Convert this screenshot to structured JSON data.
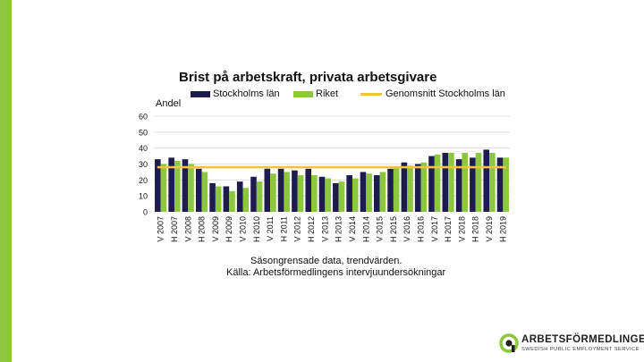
{
  "brand": {
    "name": "ARBETSFÖRMEDLINGEN",
    "tagline": "SWEDISH PUBLIC EMPLOYMENT SERVICE",
    "logo_icon": "arbetsformedlingen-logo-icon",
    "accent_color": "#8dc63f"
  },
  "chart_data": {
    "type": "bar",
    "title": "Brist på arbetskraft, privata arbetsgivare",
    "ylabel": "Andel",
    "xlabel": "",
    "ylim": [
      0,
      60
    ],
    "yticks": [
      0,
      10,
      20,
      30,
      40,
      50,
      60
    ],
    "grid": true,
    "legend_position": "top",
    "categories": [
      "V 2007",
      "H 2007",
      "V 2008",
      "H 2008",
      "V 2009",
      "H 2009",
      "V 2010",
      "H 2010",
      "V 2011",
      "H 2011",
      "V 2012",
      "H 2012",
      "V 2013",
      "H 2013",
      "V 2014",
      "H 2014",
      "V 2015",
      "H 2015",
      "V 2016",
      "H 2016",
      "V 2017",
      "H 2017",
      "V 2018",
      "H 2018",
      "V 2019",
      "H 2019"
    ],
    "series": [
      {
        "name": "Stockholms län",
        "type": "bar",
        "color": "#1e1b4e",
        "values": [
          33,
          34,
          33,
          27,
          18,
          16,
          19,
          22,
          27,
          27,
          26,
          27,
          22,
          18,
          23,
          25,
          23,
          27,
          31,
          30,
          35,
          37,
          33,
          34,
          39,
          34
        ]
      },
      {
        "name": "Riket",
        "type": "bar",
        "color": "#8dc63f",
        "values": [
          30,
          32,
          30,
          25,
          16,
          13,
          15,
          19,
          24,
          25,
          23,
          23,
          21,
          19,
          21,
          24,
          25,
          28,
          29,
          31,
          36,
          37,
          37,
          37,
          37,
          34
        ]
      },
      {
        "name": "Genomsnitt Stockholms län",
        "type": "line",
        "color": "#f5c23c",
        "values": [
          28,
          28,
          28,
          28,
          28,
          28,
          28,
          28,
          28,
          28,
          28,
          28,
          28,
          28,
          28,
          28,
          28,
          28,
          28,
          28,
          28,
          28,
          28,
          28,
          28,
          28
        ]
      }
    ]
  },
  "note": "Säsongrensade data, trendvärden.",
  "source": "Källa: Arbetsförmedlingens intervjuundersökningar"
}
